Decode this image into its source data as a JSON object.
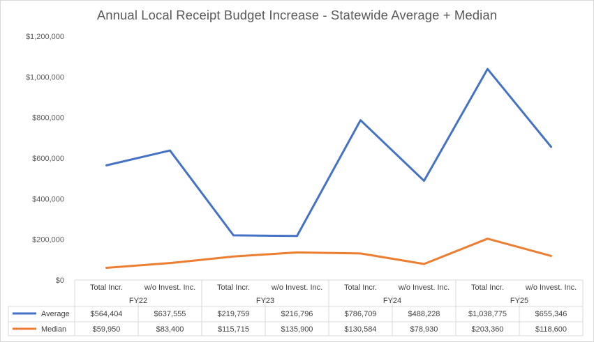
{
  "chart_data": {
    "type": "line",
    "title": "Annual Local Receipt Budget Increase - Statewide Average + Median",
    "ylim": [
      0,
      1200000
    ],
    "yticks": [
      0,
      200000,
      400000,
      600000,
      800000,
      1000000,
      1200000
    ],
    "ytick_labels": [
      "$0",
      "$200,000",
      "$400,000",
      "$600,000",
      "$800,000",
      "$1,000,000",
      "$1,200,000"
    ],
    "grid": false,
    "categories": [
      "Total Incr.",
      "w/o Invest. Inc.",
      "Total Incr.",
      "w/o Invest. Inc.",
      "Total Incr.",
      "w/o Invest. Inc.",
      "Total Incr.",
      "w/o Invest. Inc."
    ],
    "groups": [
      "FY22",
      "FY23",
      "FY24",
      "FY25"
    ],
    "series": [
      {
        "name": "Average",
        "color": "#4472c4",
        "values": [
          564404,
          637555,
          219759,
          216796,
          786709,
          488228,
          1038775,
          655346
        ],
        "labels": [
          "$564,404",
          "$637,555",
          "$219,759",
          "$216,796",
          "$786,709",
          "$488,228",
          "$1,038,775",
          "$655,346"
        ]
      },
      {
        "name": "Median",
        "color": "#ed7d31",
        "values": [
          59950,
          83400,
          115715,
          135900,
          130584,
          78930,
          203360,
          118600
        ],
        "labels": [
          "$59,950",
          "$83,400",
          "$115,715",
          "$135,900",
          "$130,584",
          "$78,930",
          "$203,360",
          "$118,600"
        ]
      }
    ],
    "legend": "data-table"
  }
}
